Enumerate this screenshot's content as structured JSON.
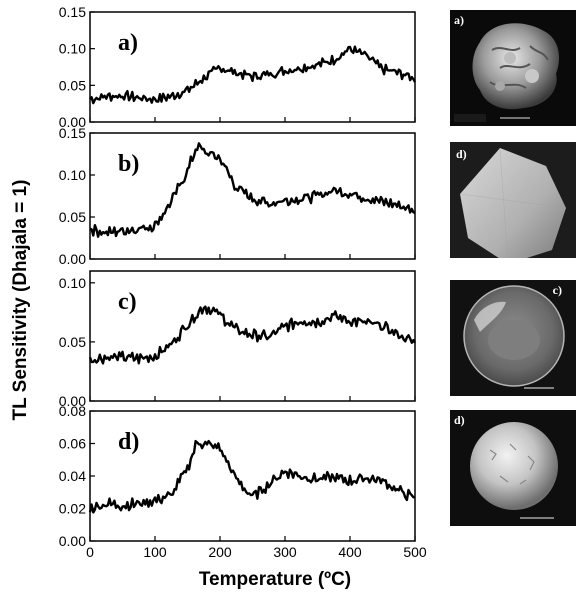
{
  "y_axis_label": "TL Sensitivity (Dhajala = 1)",
  "x_axis_label": "Temperature (ºC)",
  "chart_data": [
    {
      "type": "line",
      "panel_label": "a)",
      "xlim": [
        0,
        500
      ],
      "ylim": [
        0.0,
        0.15
      ],
      "yticks": [
        "0.00",
        "0.05",
        "0.10",
        "0.15"
      ],
      "x": [
        0,
        25,
        50,
        75,
        100,
        125,
        150,
        175,
        200,
        225,
        250,
        275,
        300,
        325,
        350,
        375,
        400,
        425,
        450,
        475,
        500
      ],
      "values": [
        0.031,
        0.035,
        0.036,
        0.033,
        0.031,
        0.035,
        0.043,
        0.06,
        0.074,
        0.067,
        0.062,
        0.065,
        0.07,
        0.074,
        0.078,
        0.085,
        0.1,
        0.09,
        0.072,
        0.067,
        0.059
      ]
    },
    {
      "type": "line",
      "panel_label": "b)",
      "xlim": [
        0,
        500
      ],
      "ylim": [
        0.0,
        0.15
      ],
      "yticks": [
        "0.00",
        "0.05",
        "0.10",
        "0.15"
      ],
      "x": [
        0,
        25,
        50,
        75,
        100,
        125,
        150,
        165,
        175,
        200,
        225,
        250,
        275,
        300,
        325,
        350,
        375,
        400,
        425,
        450,
        475,
        500
      ],
      "values": [
        0.036,
        0.031,
        0.034,
        0.036,
        0.04,
        0.068,
        0.105,
        0.135,
        0.128,
        0.12,
        0.085,
        0.072,
        0.066,
        0.07,
        0.072,
        0.075,
        0.082,
        0.078,
        0.073,
        0.068,
        0.064,
        0.057
      ]
    },
    {
      "type": "line",
      "panel_label": "c)",
      "xlim": [
        0,
        500
      ],
      "ylim": [
        0.0,
        0.11
      ],
      "yticks": [
        "0.00",
        "0.05",
        "0.10"
      ],
      "x": [
        0,
        25,
        50,
        75,
        100,
        125,
        150,
        175,
        200,
        225,
        250,
        275,
        300,
        325,
        350,
        375,
        400,
        425,
        450,
        475,
        500
      ],
      "values": [
        0.035,
        0.037,
        0.037,
        0.036,
        0.038,
        0.048,
        0.065,
        0.08,
        0.073,
        0.06,
        0.056,
        0.054,
        0.063,
        0.068,
        0.067,
        0.072,
        0.068,
        0.066,
        0.063,
        0.056,
        0.049
      ]
    },
    {
      "type": "line",
      "panel_label": "d)",
      "xlim": [
        0,
        500
      ],
      "ylim": [
        0.0,
        0.08
      ],
      "yticks": [
        "0.00",
        "0.02",
        "0.04",
        "0.06",
        "0.08"
      ],
      "x": [
        0,
        25,
        50,
        75,
        100,
        125,
        150,
        165,
        175,
        200,
        225,
        250,
        275,
        300,
        325,
        350,
        375,
        400,
        425,
        450,
        475,
        500
      ],
      "values": [
        0.02,
        0.023,
        0.022,
        0.023,
        0.025,
        0.028,
        0.045,
        0.061,
        0.06,
        0.057,
        0.038,
        0.027,
        0.035,
        0.043,
        0.04,
        0.038,
        0.039,
        0.037,
        0.039,
        0.037,
        0.031,
        0.026
      ]
    }
  ],
  "x_ticks": [
    "0",
    "100",
    "200",
    "300",
    "400",
    "500"
  ],
  "images": [
    {
      "label": "a)"
    },
    {
      "label": "d)"
    },
    {
      "label": "c)"
    },
    {
      "label": "d)"
    }
  ]
}
